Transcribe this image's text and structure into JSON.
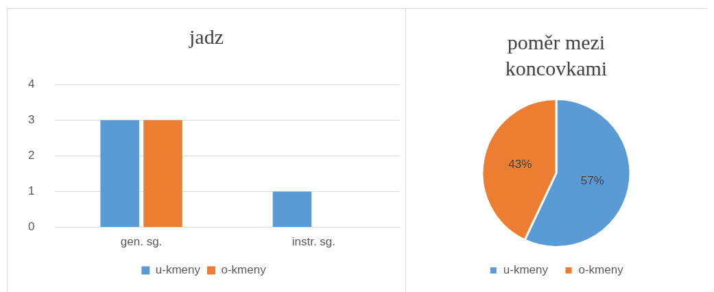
{
  "chart_data": [
    {
      "type": "bar",
      "title": "jadz",
      "categories": [
        "gen. sg.",
        "instr. sg."
      ],
      "series": [
        {
          "name": "u-kmeny",
          "color": "#5b9bd5",
          "values": [
            3,
            1
          ]
        },
        {
          "name": "o-kmeny",
          "color": "#ed7d31",
          "values": [
            3,
            0
          ]
        }
      ],
      "ylim": [
        0,
        4
      ],
      "yticks": [
        0,
        1,
        2,
        3,
        4
      ],
      "grid": "y",
      "legend": "bottom"
    },
    {
      "type": "pie",
      "title": "poměr mezi koncovkami",
      "categories": [
        "u-kmeny",
        "o-kmeny"
      ],
      "values": [
        57,
        43
      ],
      "colors": [
        "#5b9bd5",
        "#ed7d31"
      ],
      "value_labels": [
        "57%",
        "43%"
      ],
      "legend": "bottom"
    }
  ]
}
